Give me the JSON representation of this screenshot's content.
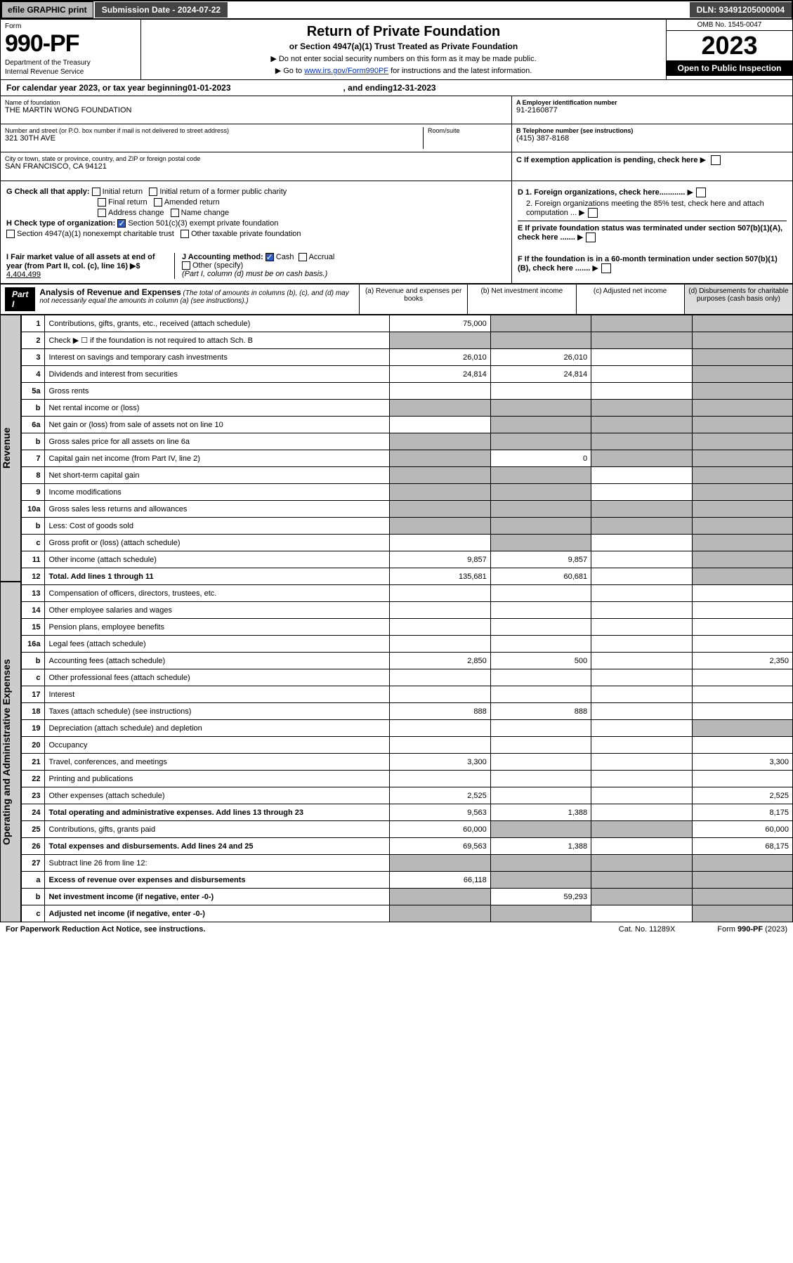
{
  "topbar": {
    "efile": "efile GRAPHIC print",
    "sub_label": "Submission Date - 2024-07-22",
    "dln": "DLN: 93491205000004"
  },
  "header": {
    "form_label": "Form",
    "form_num": "990-PF",
    "dept1": "Department of the Treasury",
    "dept2": "Internal Revenue Service",
    "title": "Return of Private Foundation",
    "subtitle": "or Section 4947(a)(1) Trust Treated as Private Foundation",
    "instr1": "▶ Do not enter social security numbers on this form as it may be made public.",
    "instr2_pre": "▶ Go to ",
    "instr2_link": "www.irs.gov/Form990PF",
    "instr2_post": " for instructions and the latest information.",
    "omb": "OMB No. 1545-0047",
    "year": "2023",
    "open": "Open to Public Inspection"
  },
  "calyear": {
    "prefix": "For calendar year 2023, or tax year beginning ",
    "begin": "01-01-2023",
    "mid": " , and ending ",
    "end": "12-31-2023"
  },
  "entity": {
    "name_label": "Name of foundation",
    "name": "THE MARTIN WONG FOUNDATION",
    "addr_label": "Number and street (or P.O. box number if mail is not delivered to street address)",
    "addr": "321 30TH AVE",
    "room_label": "Room/suite",
    "city_label": "City or town, state or province, country, and ZIP or foreign postal code",
    "city": "SAN FRANCISCO, CA  94121",
    "ein_label": "A Employer identification number",
    "ein": "91-2160877",
    "phone_label": "B Telephone number (see instructions)",
    "phone": "(415) 387-8168",
    "c_label": "C If exemption application is pending, check here"
  },
  "checks": {
    "g_label": "G Check all that apply:",
    "g_items": [
      "Initial return",
      "Initial return of a former public charity",
      "Final return",
      "Amended return",
      "Address change",
      "Name change"
    ],
    "h_label": "H Check type of organization:",
    "h1": "Section 501(c)(3) exempt private foundation",
    "h2": "Section 4947(a)(1) nonexempt charitable trust",
    "h3": "Other taxable private foundation",
    "i_label": "I Fair market value of all assets at end of year (from Part II, col. (c), line 16) ▶$ ",
    "i_val": "4,404,499",
    "j_label": "J Accounting method:",
    "j_cash": "Cash",
    "j_accrual": "Accrual",
    "j_other": "Other (specify)",
    "j_note": "(Part I, column (d) must be on cash basis.)",
    "d1": "D 1. Foreign organizations, check here............",
    "d2": "2. Foreign organizations meeting the 85% test, check here and attach computation ...",
    "e": "E If private foundation status was terminated under section 507(b)(1)(A), check here .......",
    "f": "F If the foundation is in a 60-month termination under section 507(b)(1)(B), check here ......."
  },
  "part1": {
    "label": "Part I",
    "title": "Analysis of Revenue and Expenses",
    "title_note": " (The total of amounts in columns (b), (c), and (d) may not necessarily equal the amounts in column (a) (see instructions).)",
    "col_a": "(a) Revenue and expenses per books",
    "col_b": "(b) Net investment income",
    "col_c": "(c) Adjusted net income",
    "col_d": "(d) Disbursements for charitable purposes (cash basis only)",
    "side_rev": "Revenue",
    "side_exp": "Operating and Administrative Expenses"
  },
  "rows": [
    {
      "n": "1",
      "d": "",
      "a": "75,000",
      "b": "",
      "c": "",
      "shade_b": true,
      "shade_c": true,
      "shade_d": true
    },
    {
      "n": "2",
      "d": "",
      "a": "",
      "b": "",
      "c": "",
      "shade_a": true,
      "shade_b": true,
      "shade_c": true,
      "shade_d": true
    },
    {
      "n": "3",
      "d": "",
      "a": "26,010",
      "b": "26,010",
      "c": "",
      "shade_d": true
    },
    {
      "n": "4",
      "d": "",
      "a": "24,814",
      "b": "24,814",
      "c": "",
      "shade_d": true
    },
    {
      "n": "5a",
      "d": "",
      "a": "",
      "b": "",
      "c": "",
      "shade_d": true
    },
    {
      "n": "b",
      "d": "",
      "a": "",
      "b": "",
      "c": "",
      "shade_a": true,
      "shade_b": true,
      "shade_c": true,
      "shade_d": true
    },
    {
      "n": "6a",
      "d": "",
      "a": "",
      "b": "",
      "c": "",
      "shade_b": true,
      "shade_c": true,
      "shade_d": true
    },
    {
      "n": "b",
      "d": "",
      "a": "",
      "b": "",
      "c": "",
      "shade_a": true,
      "shade_b": true,
      "shade_c": true,
      "shade_d": true
    },
    {
      "n": "7",
      "d": "",
      "a": "",
      "b": "0",
      "c": "",
      "shade_a": true,
      "shade_c": true,
      "shade_d": true
    },
    {
      "n": "8",
      "d": "",
      "a": "",
      "b": "",
      "c": "",
      "shade_a": true,
      "shade_b": true,
      "shade_d": true
    },
    {
      "n": "9",
      "d": "",
      "a": "",
      "b": "",
      "c": "",
      "shade_a": true,
      "shade_b": true,
      "shade_d": true
    },
    {
      "n": "10a",
      "d": "",
      "a": "",
      "b": "",
      "c": "",
      "shade_a": true,
      "shade_b": true,
      "shade_c": true,
      "shade_d": true
    },
    {
      "n": "b",
      "d": "",
      "a": "",
      "b": "",
      "c": "",
      "shade_a": true,
      "shade_b": true,
      "shade_c": true,
      "shade_d": true
    },
    {
      "n": "c",
      "d": "",
      "a": "",
      "b": "",
      "c": "",
      "shade_b": true,
      "shade_d": true
    },
    {
      "n": "11",
      "d": "",
      "a": "9,857",
      "b": "9,857",
      "c": "",
      "shade_d": true
    },
    {
      "n": "12",
      "d": "",
      "bold": true,
      "a": "135,681",
      "b": "60,681",
      "c": "",
      "shade_d": true
    },
    {
      "n": "13",
      "d": "",
      "a": "",
      "b": "",
      "c": ""
    },
    {
      "n": "14",
      "d": "",
      "a": "",
      "b": "",
      "c": ""
    },
    {
      "n": "15",
      "d": "",
      "a": "",
      "b": "",
      "c": ""
    },
    {
      "n": "16a",
      "d": "",
      "a": "",
      "b": "",
      "c": ""
    },
    {
      "n": "b",
      "d": "2,350",
      "a": "2,850",
      "b": "500",
      "c": ""
    },
    {
      "n": "c",
      "d": "",
      "a": "",
      "b": "",
      "c": ""
    },
    {
      "n": "17",
      "d": "",
      "a": "",
      "b": "",
      "c": ""
    },
    {
      "n": "18",
      "d": "",
      "a": "888",
      "b": "888",
      "c": ""
    },
    {
      "n": "19",
      "d": "",
      "a": "",
      "b": "",
      "c": "",
      "shade_d": true
    },
    {
      "n": "20",
      "d": "",
      "a": "",
      "b": "",
      "c": ""
    },
    {
      "n": "21",
      "d": "3,300",
      "a": "3,300",
      "b": "",
      "c": ""
    },
    {
      "n": "22",
      "d": "",
      "a": "",
      "b": "",
      "c": ""
    },
    {
      "n": "23",
      "d": "2,525",
      "a": "2,525",
      "b": "",
      "c": ""
    },
    {
      "n": "24",
      "d": "8,175",
      "bold": true,
      "a": "9,563",
      "b": "1,388",
      "c": ""
    },
    {
      "n": "25",
      "d": "60,000",
      "a": "60,000",
      "b": "",
      "c": "",
      "shade_b": true,
      "shade_c": true
    },
    {
      "n": "26",
      "d": "68,175",
      "bold": true,
      "a": "69,563",
      "b": "1,388",
      "c": ""
    },
    {
      "n": "27",
      "d": "",
      "a": "",
      "b": "",
      "c": "",
      "shade_a": true,
      "shade_b": true,
      "shade_c": true,
      "shade_d": true
    },
    {
      "n": "a",
      "d": "",
      "bold": true,
      "a": "66,118",
      "b": "",
      "c": "",
      "shade_b": true,
      "shade_c": true,
      "shade_d": true
    },
    {
      "n": "b",
      "d": "",
      "bold": true,
      "a": "",
      "b": "59,293",
      "c": "",
      "shade_a": true,
      "shade_c": true,
      "shade_d": true
    },
    {
      "n": "c",
      "d": "",
      "bold": true,
      "a": "",
      "b": "",
      "c": "",
      "shade_a": true,
      "shade_b": true,
      "shade_d": true
    }
  ],
  "footer": {
    "left": "For Paperwork Reduction Act Notice, see instructions.",
    "mid": "Cat. No. 11289X",
    "right": "Form 990-PF (2023)"
  }
}
